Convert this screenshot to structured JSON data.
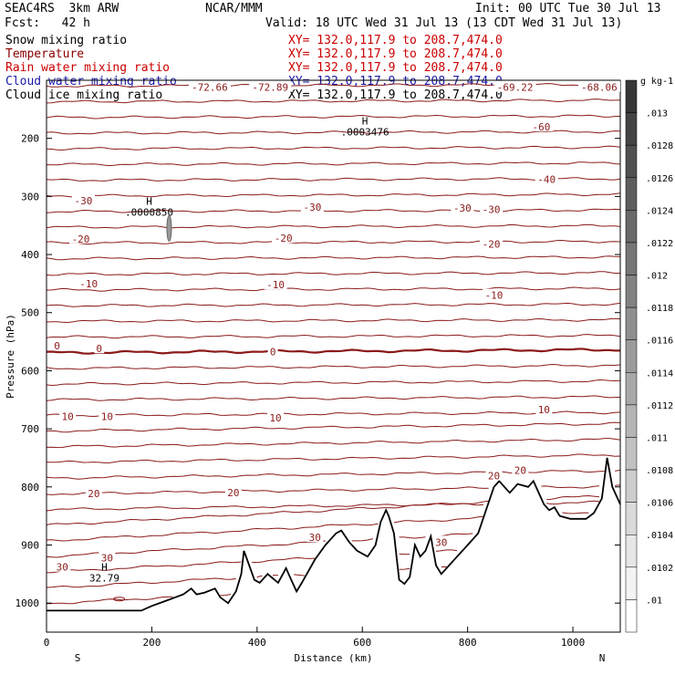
{
  "header": {
    "run": "SEAC4RS  3km ARW",
    "institution": "NCAR/MMM",
    "init": "Init: 00 UTC Tue 30 Jul 13",
    "fcst": "Fcst:   42 h",
    "valid": "Valid: 18 UTC Wed 31 Jul 13 (13 CDT Wed 31 Jul 13)"
  },
  "chart_data": {
    "type": "contour",
    "xlabel": "Distance (km)",
    "ylabel": "Pressure (hPa)",
    "xlim": [
      0,
      1090
    ],
    "ylim": [
      1050,
      100
    ],
    "xticks": [
      0,
      200,
      400,
      600,
      800,
      1000
    ],
    "yticks": [
      200,
      300,
      400,
      500,
      600,
      700,
      800,
      900,
      1000
    ],
    "end_labels": {
      "left": "S",
      "right": "N"
    },
    "fields": [
      {
        "name": "Snow mixing ratio",
        "xy": "XY= 132.0,117.9 to 208.7,474.0",
        "color": "#000000"
      },
      {
        "name": "Temperature",
        "xy": "XY= 132.0,117.9 to 208.7,474.0",
        "color": "#8b0000"
      },
      {
        "name": "Rain water mixing ratio",
        "xy": "XY= 132.0,117.9 to 208.7,474.0",
        "color": "#cc0000"
      },
      {
        "name": "Cloud water mixing ratio",
        "xy": "XY= 132.0,117.9 to 208.7,474.0",
        "color": "#1a1aaa"
      },
      {
        "name": "Cloud ice mixing ratio",
        "xy": "XY= 132.0,117.9 to 208.7,474.0",
        "color": "#000000"
      }
    ],
    "colorbar": {
      "unit": "g kg-1",
      "labels": [
        ".01",
        ".0102",
        ".0104",
        ".0106",
        ".0108",
        ".011",
        ".0112",
        ".0114",
        ".0116",
        ".0118",
        ".012",
        ".0122",
        ".0124",
        ".0126",
        ".0128",
        ".013"
      ]
    },
    "temperature_labels": [
      {
        "text": "-72.66",
        "x": 310,
        "p": 112
      },
      {
        "text": "-72.89",
        "x": 425,
        "p": 112
      },
      {
        "text": "-69.22",
        "x": 890,
        "p": 112
      },
      {
        "text": "-68.06",
        "x": 1050,
        "p": 112
      },
      {
        "text": "-60",
        "x": 940,
        "p": 180
      },
      {
        "text": "-40",
        "x": 950,
        "p": 270
      },
      {
        "text": "-30",
        "x": 70,
        "p": 307
      },
      {
        "text": "-30",
        "x": 505,
        "p": 318
      },
      {
        "text": "-30",
        "x": 790,
        "p": 320
      },
      {
        "text": "-30",
        "x": 845,
        "p": 322
      },
      {
        "text": "-20",
        "x": 65,
        "p": 373
      },
      {
        "text": "-20",
        "x": 450,
        "p": 372
      },
      {
        "text": "-20",
        "x": 845,
        "p": 382
      },
      {
        "text": "-10",
        "x": 80,
        "p": 450
      },
      {
        "text": "-10",
        "x": 435,
        "p": 452
      },
      {
        "text": "-10",
        "x": 850,
        "p": 470
      },
      {
        "text": "0",
        "x": 20,
        "p": 557
      },
      {
        "text": "0",
        "x": 100,
        "p": 562
      },
      {
        "text": "0",
        "x": 430,
        "p": 567
      },
      {
        "text": "10",
        "x": 40,
        "p": 679
      },
      {
        "text": "10",
        "x": 115,
        "p": 679
      },
      {
        "text": "10",
        "x": 435,
        "p": 681
      },
      {
        "text": "10",
        "x": 945,
        "p": 667
      },
      {
        "text": "20",
        "x": 90,
        "p": 811
      },
      {
        "text": "20",
        "x": 355,
        "p": 810
      },
      {
        "text": "20",
        "x": 850,
        "p": 781
      },
      {
        "text": "20",
        "x": 900,
        "p": 771
      },
      {
        "text": "30",
        "x": 30,
        "p": 938
      },
      {
        "text": "30",
        "x": 115,
        "p": 922
      },
      {
        "text": "30",
        "x": 510,
        "p": 887
      },
      {
        "text": "30",
        "x": 750,
        "p": 895
      }
    ],
    "extrema": [
      {
        "label": "H",
        "value": ".0003476",
        "x": 605,
        "p": 192,
        "name": "snow-max"
      },
      {
        "label": "H",
        "value": ".0000850",
        "x": 195,
        "p": 330,
        "name": "cloud-ice-max"
      },
      {
        "label": "H",
        "value": "32.79",
        "x": 110,
        "p": 960,
        "name": "temperature-max"
      }
    ],
    "terrain_pressure": [
      [
        0,
        1013
      ],
      [
        100,
        1013
      ],
      [
        180,
        1013
      ],
      [
        200,
        1005
      ],
      [
        230,
        995
      ],
      [
        260,
        985
      ],
      [
        275,
        975
      ],
      [
        285,
        985
      ],
      [
        300,
        982
      ],
      [
        320,
        975
      ],
      [
        330,
        990
      ],
      [
        345,
        1000
      ],
      [
        360,
        980
      ],
      [
        370,
        950
      ],
      [
        375,
        910
      ],
      [
        385,
        935
      ],
      [
        395,
        960
      ],
      [
        405,
        965
      ],
      [
        420,
        950
      ],
      [
        440,
        965
      ],
      [
        455,
        940
      ],
      [
        465,
        960
      ],
      [
        475,
        980
      ],
      [
        485,
        965
      ],
      [
        510,
        925
      ],
      [
        530,
        900
      ],
      [
        550,
        880
      ],
      [
        560,
        875
      ],
      [
        575,
        895
      ],
      [
        590,
        910
      ],
      [
        610,
        920
      ],
      [
        625,
        900
      ],
      [
        635,
        860
      ],
      [
        645,
        840
      ],
      [
        650,
        850
      ],
      [
        660,
        880
      ],
      [
        665,
        920
      ],
      [
        670,
        960
      ],
      [
        680,
        967
      ],
      [
        690,
        955
      ],
      [
        700,
        900
      ],
      [
        710,
        920
      ],
      [
        720,
        910
      ],
      [
        730,
        885
      ],
      [
        740,
        935
      ],
      [
        750,
        950
      ],
      [
        760,
        940
      ],
      [
        780,
        920
      ],
      [
        800,
        900
      ],
      [
        820,
        880
      ],
      [
        835,
        840
      ],
      [
        850,
        800
      ],
      [
        860,
        790
      ],
      [
        870,
        800
      ],
      [
        880,
        810
      ],
      [
        895,
        795
      ],
      [
        915,
        800
      ],
      [
        925,
        790
      ],
      [
        935,
        810
      ],
      [
        945,
        830
      ],
      [
        955,
        840
      ],
      [
        965,
        835
      ],
      [
        975,
        850
      ],
      [
        995,
        855
      ],
      [
        1010,
        855
      ],
      [
        1025,
        855
      ],
      [
        1040,
        845
      ],
      [
        1055,
        820
      ],
      [
        1065,
        750
      ],
      [
        1075,
        800
      ],
      [
        1085,
        820
      ],
      [
        1090,
        830
      ]
    ]
  }
}
